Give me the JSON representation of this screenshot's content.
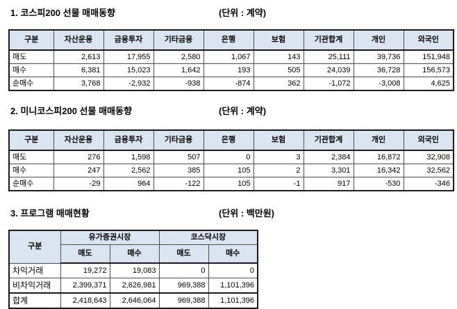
{
  "colors": {
    "header_bg": "#dbe5f1",
    "border_dark": "#1a1a1a",
    "border_light": "#4d4d4d",
    "text": "#000000",
    "page_bg": "#ffffff"
  },
  "sections": [
    {
      "title": "1. 코스피200 선물 매매동향",
      "unit": "(단위 : 계약)",
      "table": {
        "headers": [
          "구분",
          "자산운용",
          "금융투자",
          "기타금융",
          "은행",
          "보험",
          "기관합계",
          "개인",
          "외국인"
        ],
        "rows": [
          {
            "label": "매도",
            "values": [
              "2,613",
              "17,955",
              "2,580",
              "1,067",
              "143",
              "25,111",
              "39,736",
              "151,948"
            ]
          },
          {
            "label": "매수",
            "values": [
              "6,381",
              "15,023",
              "1,642",
              "193",
              "505",
              "24,039",
              "36,728",
              "156,573"
            ]
          },
          {
            "label": "순매수",
            "values": [
              "3,768",
              "-2,932",
              "-938",
              "-874",
              "362",
              "-1,072",
              "-3,008",
              "4,625"
            ]
          }
        ]
      }
    },
    {
      "title": "2. 미니코스피200 선물 매매동향",
      "unit": "(단위 : 계약)",
      "table": {
        "headers": [
          "구분",
          "자산운용",
          "금융투자",
          "기타금융",
          "은행",
          "보험",
          "기관합계",
          "개인",
          "외국인"
        ],
        "rows": [
          {
            "label": "매도",
            "values": [
              "276",
              "1,598",
              "507",
              "0",
              "3",
              "2,384",
              "16,872",
              "32,908"
            ]
          },
          {
            "label": "매수",
            "values": [
              "247",
              "2,562",
              "385",
              "105",
              "2",
              "3,301",
              "16,342",
              "32,562"
            ]
          },
          {
            "label": "순매수",
            "values": [
              "-29",
              "964",
              "-122",
              "105",
              "-1",
              "917",
              "-530",
              "-346"
            ]
          }
        ]
      }
    },
    {
      "title": "3. 프로그램 매매현황",
      "unit": "(단위 : 백만원)",
      "table": {
        "corner_header": "구분",
        "group_headers": [
          "유가증권시장",
          "코스닥시장"
        ],
        "sub_headers": [
          "매도",
          "매수",
          "매도",
          "매수"
        ],
        "rows": [
          {
            "label": "차익거래",
            "values": [
              "19,272",
              "19,083",
              "0",
              "0"
            ]
          },
          {
            "label": "비차익거래",
            "values": [
              "2,399,371",
              "2,626,981",
              "969,388",
              "1,101,396"
            ]
          },
          {
            "label": "합계",
            "values": [
              "2,418,643",
              "2,646,064",
              "969,388",
              "1,101,396"
            ],
            "thick_top": true
          }
        ]
      }
    }
  ]
}
